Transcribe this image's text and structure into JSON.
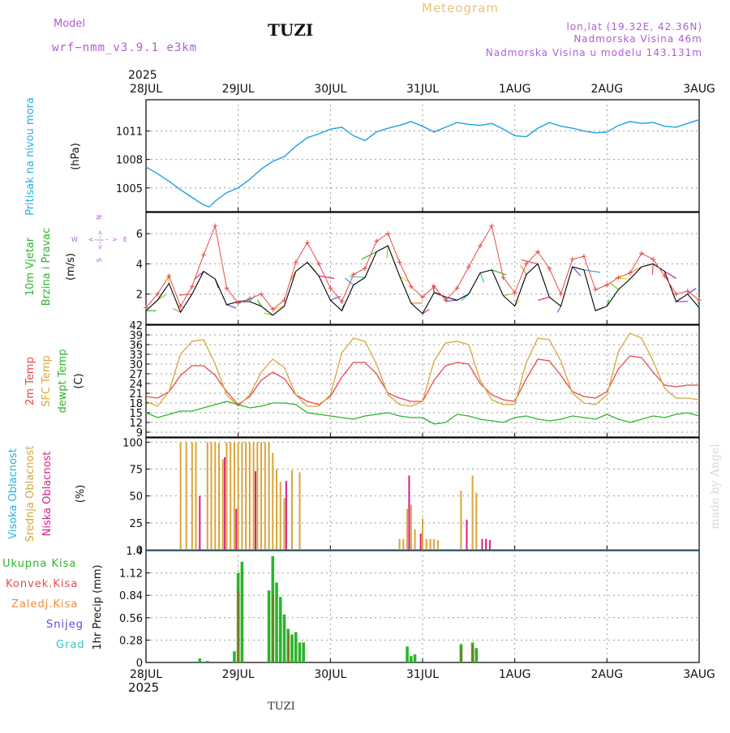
{
  "header": {
    "model_label": "Model",
    "model_name": "wrf−nmm_v3.9.1  e3km",
    "station": "TUZI",
    "meteogram": "Meteogram",
    "lonlat": "lon,lat (19.32E, 42.36N)",
    "elev": "Nadmorska Visina 46m",
    "elev_model": "Nadmorska Visina u modelu 143.131m"
  },
  "footer": {
    "station": "TUZI",
    "credit": "made by Angel"
  },
  "time_axis": {
    "year": "2025",
    "labels": [
      "28JUL",
      "29JUL",
      "30JUL",
      "31JUL",
      "1AUG",
      "2AUG",
      "3AUG"
    ],
    "range_hours": [
      0,
      144
    ]
  },
  "colors": {
    "pressure": "#1ea0e6",
    "wind_speed": "#000000",
    "gust": "#e84a4a",
    "t2m": "#e84a4a",
    "sfc": "#d9a53a",
    "dewpt": "#2ab52a",
    "cloud_high": "#29aee0",
    "cloud_mid": "#d9a53a",
    "cloud_low": "#d61f8a",
    "precip_total": "#2ab52a",
    "precip_conv": "#e84a4a",
    "precip_frozen": "#f0883a",
    "snow": "#5a4fe0",
    "hail": "#30c8c0"
  },
  "chart_data": [
    {
      "type": "line",
      "title": "Pritisak na nivou mora",
      "ylabel": "(hPa)",
      "ylabel_title": "Pritisak na nivou mora",
      "yticks": [
        "1005",
        "1008",
        "1011"
      ],
      "ylim": [
        1002.5,
        1014.3
      ],
      "x": [
        0,
        3,
        6,
        9,
        12,
        15,
        16.5,
        18,
        21,
        24,
        27,
        30,
        33,
        36,
        39,
        42,
        45,
        48,
        51,
        54,
        57,
        60,
        63,
        66,
        69,
        72,
        75,
        78,
        81,
        84,
        87,
        90,
        93,
        96,
        99,
        102,
        105,
        108,
        111,
        114,
        117,
        120,
        123,
        126,
        129,
        132,
        135,
        138,
        141,
        144
      ],
      "series": [
        {
          "name": "Pressure",
          "values": [
            1007.2,
            1006.5,
            1005.7,
            1004.8,
            1004.0,
            1003.2,
            1003.0,
            1003.6,
            1004.5,
            1005.0,
            1005.9,
            1007.0,
            1007.8,
            1008.3,
            1009.4,
            1010.3,
            1010.7,
            1011.2,
            1011.4,
            1010.5,
            1010.0,
            1010.9,
            1011.3,
            1011.6,
            1012.0,
            1011.5,
            1010.9,
            1011.4,
            1011.9,
            1011.7,
            1011.6,
            1011.8,
            1011.2,
            1010.5,
            1010.4,
            1011.3,
            1011.9,
            1011.5,
            1011.3,
            1011.0,
            1010.8,
            1010.9,
            1011.6,
            1012.0,
            1011.8,
            1011.9,
            1011.5,
            1011.4,
            1011.8,
            1012.2
          ]
        }
      ]
    },
    {
      "type": "line",
      "title": "10m Vjetar Brzina i Pravac",
      "ylabel": "(m/s)",
      "ylabel_title": [
        "10m Vjetar",
        "Brzina i Pravac"
      ],
      "compass": {
        "west": "W",
        "east": "E",
        "north": "N",
        "south": "S",
        "arrows": "<–|–>"
      },
      "yticks": [
        "2",
        "4",
        "6"
      ],
      "ylim": [
        0,
        7.4
      ],
      "x": [
        0,
        3,
        6,
        9,
        12,
        15,
        18,
        21,
        24,
        27,
        30,
        33,
        36,
        39,
        42,
        45,
        48,
        51,
        54,
        57,
        60,
        63,
        66,
        69,
        72,
        75,
        78,
        81,
        84,
        87,
        90,
        93,
        96,
        99,
        102,
        105,
        108,
        111,
        114,
        117,
        120,
        123,
        126,
        129,
        132,
        135,
        138,
        141,
        144
      ],
      "series": [
        {
          "name": "Speed",
          "values": [
            0.9,
            1.6,
            2.7,
            0.8,
            2.0,
            3.5,
            3.0,
            1.3,
            1.5,
            1.5,
            1.2,
            0.6,
            1.2,
            3.5,
            4.1,
            3.2,
            1.6,
            0.9,
            2.6,
            3.1,
            4.8,
            5.2,
            3.2,
            1.4,
            0.7,
            2.1,
            1.8,
            1.6,
            2.0,
            3.4,
            3.6,
            1.9,
            1.2,
            3.3,
            4.0,
            1.8,
            1.2,
            3.8,
            3.6,
            0.9,
            1.2,
            2.3,
            3.0,
            3.8,
            4.0,
            3.5,
            1.5,
            2.0,
            1.1
          ]
        },
        {
          "name": "Gust",
          "values": [
            1.1,
            2.0,
            3.2,
            1.2,
            2.5,
            4.6,
            6.5,
            2.4,
            1.4,
            1.7,
            2.0,
            1.0,
            1.6,
            4.1,
            5.4,
            4.0,
            2.4,
            1.5,
            3.3,
            3.7,
            5.5,
            6.0,
            4.1,
            2.5,
            1.8,
            2.5,
            1.6,
            2.4,
            3.8,
            5.2,
            6.5,
            3.1,
            2.1,
            4.0,
            4.8,
            3.7,
            2.0,
            4.3,
            4.5,
            2.3,
            2.6,
            3.1,
            3.4,
            4.7,
            4.3,
            3.2,
            2.0,
            2.2,
            1.6
          ]
        }
      ]
    },
    {
      "type": "line",
      "title": "Temperature",
      "ylabel": "(C)",
      "ylabel_title": [
        "2m Temp",
        "SFC Temp",
        "dewpt Temp"
      ],
      "yticks": [
        "9",
        "12",
        "15",
        "18",
        "21",
        "24",
        "27",
        "30",
        "33",
        "36",
        "39",
        "42"
      ],
      "ylim": [
        7.5,
        42
      ],
      "x": [
        0,
        3,
        6,
        9,
        12,
        15,
        18,
        21,
        24,
        27,
        30,
        33,
        36,
        39,
        42,
        45,
        48,
        51,
        54,
        57,
        60,
        63,
        66,
        69,
        72,
        75,
        78,
        81,
        84,
        87,
        90,
        93,
        96,
        99,
        102,
        105,
        108,
        111,
        114,
        117,
        120,
        123,
        126,
        129,
        132,
        135,
        138,
        141,
        144
      ],
      "series": [
        {
          "name": "2m Temp",
          "values": [
            20.0,
            19.5,
            21.5,
            26.5,
            29.5,
            29.5,
            26.5,
            21.5,
            17.5,
            20.0,
            25.0,
            27.5,
            25.5,
            20.5,
            18.5,
            17.5,
            20.0,
            26.0,
            30.5,
            30.5,
            27.0,
            21.0,
            19.5,
            18.5,
            18.5,
            25.0,
            29.5,
            30.5,
            30.0,
            24.0,
            20.5,
            19.0,
            18.5,
            25.5,
            31.5,
            31.0,
            26.5,
            21.5,
            20.0,
            19.5,
            21.5,
            28.5,
            32.5,
            32.0,
            27.5,
            23.5,
            23.0,
            23.5,
            23.5
          ]
        },
        {
          "name": "SFC Temp",
          "values": [
            18.5,
            17.0,
            21.5,
            33.0,
            37.0,
            37.5,
            30.0,
            20.5,
            17.0,
            20.5,
            27.5,
            31.5,
            29.0,
            20.5,
            17.0,
            17.0,
            20.5,
            33.5,
            38.0,
            37.0,
            30.0,
            20.5,
            17.5,
            17.0,
            18.5,
            31.0,
            36.5,
            37.0,
            36.0,
            25.0,
            19.0,
            17.5,
            17.5,
            30.5,
            38.0,
            37.5,
            31.0,
            21.0,
            18.0,
            17.5,
            20.5,
            34.0,
            39.5,
            38.0,
            31.0,
            22.5,
            19.5,
            19.5,
            19.0
          ]
        },
        {
          "name": "dewpt Temp",
          "values": [
            15.0,
            13.5,
            14.5,
            15.5,
            15.5,
            16.5,
            17.5,
            18.5,
            17.5,
            16.5,
            17.0,
            18.0,
            18.0,
            17.5,
            15.0,
            14.5,
            14.0,
            13.5,
            13.0,
            14.0,
            14.5,
            15.0,
            14.0,
            13.5,
            13.5,
            11.5,
            12.0,
            14.5,
            14.0,
            13.0,
            12.5,
            12.0,
            13.5,
            14.0,
            13.0,
            12.5,
            13.0,
            14.0,
            13.5,
            13.0,
            14.5,
            13.0,
            12.0,
            13.0,
            14.0,
            13.5,
            14.5,
            15.0,
            14.0
          ]
        }
      ]
    },
    {
      "type": "bar",
      "title": "Oblacnost",
      "ylabel": "(%)",
      "ylabel_title": [
        "Visoka Oblacnost",
        "Srednja Oblacnost",
        "Niska Oblacnost"
      ],
      "yticks": [
        "0",
        "25",
        "50",
        "75",
        "100"
      ],
      "ylim": [
        0,
        104
      ],
      "series": [
        {
          "name": "Srednja Oblacnost",
          "x": [
            9,
            10.5,
            12,
            13,
            16,
            17,
            18,
            19,
            20,
            21,
            22,
            23,
            24,
            25,
            26,
            27,
            28,
            29,
            30,
            31,
            32,
            33,
            34,
            35,
            36,
            38,
            40,
            66,
            67,
            68,
            69,
            70,
            72,
            73,
            74,
            75,
            76,
            82,
            85,
            86
          ],
          "values": [
            100,
            100,
            100,
            100,
            100,
            100,
            100,
            99,
            84,
            100,
            100,
            100,
            100,
            100,
            100,
            100,
            100,
            100,
            100,
            100,
            100,
            90,
            75,
            63,
            48,
            74,
            72,
            10,
            10,
            38,
            42,
            19,
            29,
            10,
            10,
            10,
            9,
            55,
            69,
            53
          ]
        },
        {
          "name": "Niska Oblacnost",
          "x": [
            14,
            20.5,
            23.5,
            28.5,
            36.5,
            68.5,
            71.5,
            83.5,
            87.5,
            88.5,
            89.5
          ],
          "values": [
            50,
            86,
            38,
            73,
            64,
            69,
            15,
            28,
            10,
            10,
            9
          ]
        },
        {
          "name": "Visoka Oblacnost",
          "x": [
            0,
            144
          ],
          "values": [
            0,
            0
          ]
        }
      ]
    },
    {
      "type": "bar",
      "title": "1hr Precip",
      "ylabel": "1hr Precip (mm)",
      "ylabel_title": [
        "Ukupna Kisa",
        "Konvek.Kisa",
        "Zaledj.Kisa",
        "Snijeg",
        "Grad"
      ],
      "yticks": [
        "0",
        "0.28",
        "0.56",
        "0.84",
        "1.12",
        "1.4"
      ],
      "ylim": [
        0,
        1.4
      ],
      "series": [
        {
          "name": "Ukupna Kisa",
          "x": [
            14,
            16,
            23,
            24,
            25,
            32,
            33,
            34,
            35,
            36,
            37,
            38,
            39,
            40,
            41,
            68,
            69,
            70,
            82,
            85,
            86
          ],
          "values": [
            0.05,
            0.02,
            0.14,
            1.12,
            1.26,
            0.9,
            1.33,
            1.0,
            0.82,
            0.6,
            0.42,
            0.35,
            0.38,
            0.25,
            0.25,
            0.2,
            0.08,
            0.1,
            0.23,
            0.25,
            0.18
          ]
        },
        {
          "name": "Konvek.Kisa",
          "x": [
            24.3,
            33.3,
            37.3,
            82.3,
            85.3
          ],
          "values": [
            0.9,
            0.85,
            0.35,
            0.2,
            0.22
          ]
        }
      ]
    }
  ]
}
